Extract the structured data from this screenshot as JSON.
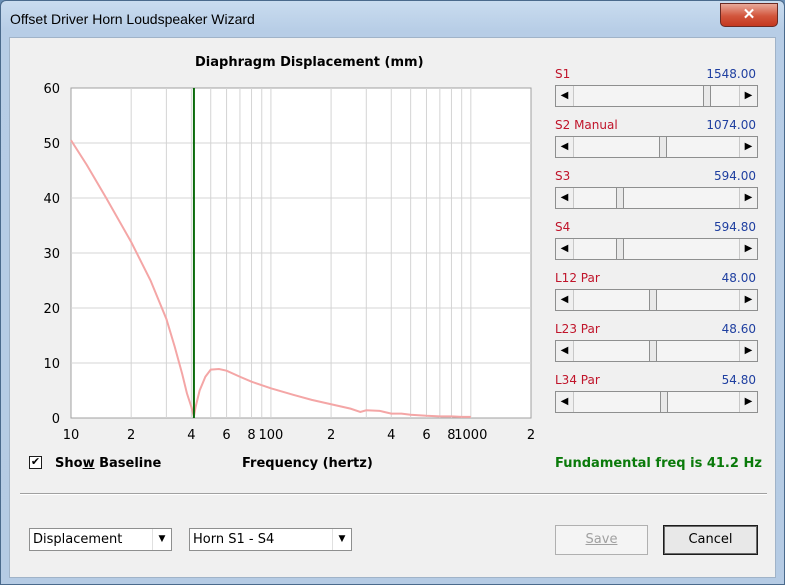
{
  "window": {
    "title": "Offset Driver Horn Loudspeaker Wizard",
    "close_glyph": "✕"
  },
  "chart": {
    "title": "Diaphragm Displacement (mm)",
    "xlabel": "Frequency (hertz)",
    "y_ticks": [
      "60",
      "50",
      "40",
      "30",
      "20",
      "10",
      "0"
    ],
    "x_ticks": [
      "10",
      "2",
      "4",
      "6",
      "8",
      "100",
      "2",
      "4",
      "6",
      "8",
      "1000",
      "2"
    ]
  },
  "chart_data": {
    "type": "line",
    "title": "Diaphragm Displacement (mm)",
    "xlabel": "Frequency (hertz)",
    "ylabel": "",
    "x_scale": "log",
    "xlim": [
      10,
      2000
    ],
    "ylim": [
      0,
      60
    ],
    "grid": true,
    "marker_line_x": 41.2,
    "marker_line_color": "#0a6a0a",
    "series": [
      {
        "color": "#f4a6a6",
        "x": [
          10,
          12,
          15,
          20,
          25,
          30,
          33,
          36,
          38,
          40,
          41.2,
          42,
          44,
          47,
          50,
          55,
          60,
          70,
          80,
          100,
          130,
          160,
          200,
          250,
          280,
          300,
          350,
          400,
          450,
          500,
          600,
          700,
          800,
          900,
          1000
        ],
        "y": [
          50.5,
          46,
          40,
          32,
          25,
          18,
          13,
          8,
          4.5,
          2,
          0.3,
          2,
          5,
          7.5,
          8.8,
          8.9,
          8.6,
          7.5,
          6.6,
          5.4,
          4.2,
          3.3,
          2.5,
          1.7,
          1.1,
          1.4,
          1.3,
          0.8,
          0.8,
          0.6,
          0.4,
          0.3,
          0.3,
          0.2,
          0.2
        ]
      }
    ]
  },
  "sliders": [
    {
      "label": "S1",
      "value": "1548.00",
      "position": 0.82
    },
    {
      "label": "S2  Manual",
      "value": "1074.00",
      "position": 0.54
    },
    {
      "label": "S3",
      "value": "594.00",
      "position": 0.27
    },
    {
      "label": "S4",
      "value": "594.80",
      "position": 0.27
    },
    {
      "label": "L12  Par",
      "value": "48.00",
      "position": 0.48
    },
    {
      "label": "L23  Par",
      "value": "48.60",
      "position": 0.48
    },
    {
      "label": "L34  Par",
      "value": "54.80",
      "position": 0.55
    }
  ],
  "show_baseline": {
    "label_pre": "Sho",
    "label_accel": "w",
    "label_post": " Baseline",
    "checked": "✔"
  },
  "status": {
    "fundamental": "Fundamental freq is 41.2 Hz"
  },
  "bottom": {
    "display_select": "Displacement",
    "horn_select": "Horn S1 - S4",
    "save_label": "Save",
    "cancel_label": "Cancel",
    "dropdown_glyph": "▼",
    "left_arrow": "◀",
    "right_arrow": "▶"
  }
}
